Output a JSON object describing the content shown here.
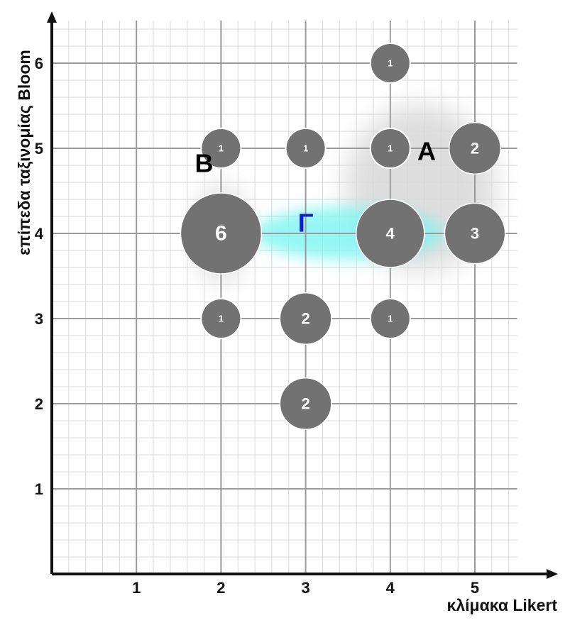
{
  "chart_data": {
    "type": "scatter",
    "xlabel": "κλίμακα Likert",
    "ylabel": "επίπεδα ταξινομίας Bloom",
    "xlim": [
      0,
      5.5
    ],
    "ylim": [
      0,
      6.5
    ],
    "x_ticks": [
      "1",
      "2",
      "3",
      "4",
      "5"
    ],
    "y_ticks": [
      "1",
      "2",
      "3",
      "4",
      "5",
      "6"
    ],
    "grid": true,
    "points": [
      {
        "x": 2,
        "y": 4,
        "count": 6,
        "label": "6"
      },
      {
        "x": 2,
        "y": 5,
        "count": 1,
        "label": "1"
      },
      {
        "x": 2,
        "y": 3,
        "count": 1,
        "label": "1"
      },
      {
        "x": 3,
        "y": 5,
        "count": 1,
        "label": "1"
      },
      {
        "x": 3,
        "y": 3,
        "count": 2,
        "label": "2"
      },
      {
        "x": 3,
        "y": 2,
        "count": 2,
        "label": "2"
      },
      {
        "x": 4,
        "y": 6,
        "count": 1,
        "label": "1"
      },
      {
        "x": 4,
        "y": 5,
        "count": 1,
        "label": "1"
      },
      {
        "x": 4,
        "y": 4,
        "count": 4,
        "label": "4"
      },
      {
        "x": 4,
        "y": 3,
        "count": 1,
        "label": "1"
      },
      {
        "x": 5,
        "y": 5,
        "count": 2,
        "label": "2"
      },
      {
        "x": 5,
        "y": 4,
        "count": 3,
        "label": "3"
      }
    ],
    "clusters": [
      {
        "label": "A",
        "label_x": 4.43,
        "label_y": 4.94,
        "color": "#000000",
        "fill": "#d9d9d9",
        "center_x": 4.36,
        "center_y": 4.53,
        "rx": 1.78,
        "ry": 1.95
      },
      {
        "label": "B",
        "label_x": 1.8,
        "label_y": 4.8,
        "color": "#000000",
        "fill": "#d9d9d9",
        "center_x": 2.0,
        "center_y": 4.0,
        "rx": 0.6,
        "ry": 1.15
      },
      {
        "label": "Γ",
        "label_x": 3.0,
        "label_y": 4.1,
        "color": "#0b22c8",
        "fill": "#7ff5f2",
        "center_x": 3.5,
        "center_y": 4.0,
        "rx": 2.25,
        "ry": 0.62
      }
    ],
    "colors": {
      "bubble": "#727272",
      "bubble_stroke": "#ffffff",
      "major_grid": "#9b9b9b",
      "minor_grid": "#d8d8d8",
      "axis": "#111111"
    }
  }
}
